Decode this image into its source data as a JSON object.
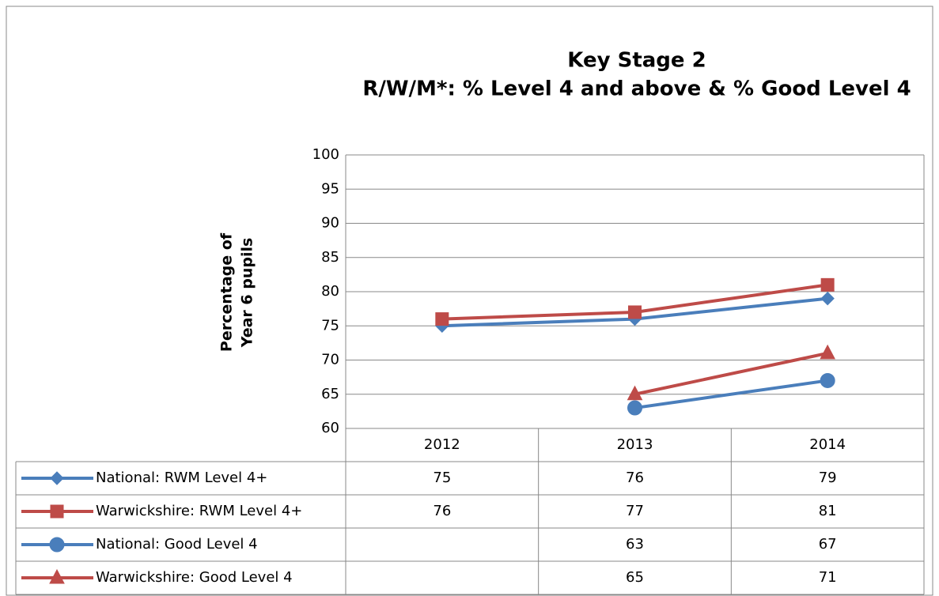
{
  "chart_data": {
    "type": "line",
    "title": [
      "Key Stage 2",
      "R/W/M*: % Level 4 and above & % Good Level 4"
    ],
    "ylabel": [
      "Percentage of",
      "Year 6 pupils"
    ],
    "categories": [
      "2012",
      "2013",
      "2014"
    ],
    "series": [
      {
        "name": "National: RWM Level 4+",
        "color": "#4a7ebb",
        "marker": "diamond",
        "values": [
          75,
          76,
          79
        ]
      },
      {
        "name": "Warwickshire: RWM Level 4+",
        "color": "#be4b48",
        "marker": "square",
        "values": [
          76,
          77,
          81
        ]
      },
      {
        "name": "National: Good Level 4",
        "color": "#4a7ebb",
        "marker": "circle",
        "values": [
          null,
          63,
          67
        ]
      },
      {
        "name": "Warwickshire: Good Level 4",
        "color": "#be4b48",
        "marker": "triangle",
        "values": [
          null,
          65,
          71
        ]
      }
    ],
    "ylim": [
      60,
      100
    ],
    "yticks": [
      60,
      65,
      70,
      75,
      80,
      85,
      90,
      95,
      100
    ],
    "grid": true
  }
}
